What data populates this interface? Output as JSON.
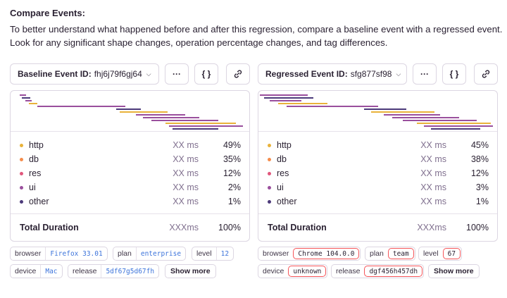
{
  "heading": "Compare Events:",
  "description": "To better understand what happened before and after this regression, compare a baseline event with a regressed event. Look for any significant shape changes, operation percentage changes, and tag differences.",
  "colors": {
    "http": "#e9b23a",
    "db": "#f58c4b",
    "res": "#e1567c",
    "ui": "#9a4f9d",
    "other": "#4c3a7a",
    "diff_border": "#f55459",
    "tag_value": "#3d74db"
  },
  "toolbar_icons": [
    "ellipsis-icon",
    "json-braces-icon",
    "link-icon"
  ],
  "toolbar_labels": {
    "more": "···",
    "json": "{ }"
  },
  "baseline": {
    "selector_label": "Baseline Event ID:",
    "event_id": "fhj6j79f6gj64",
    "operations": [
      {
        "name": "http",
        "ms": "XX ms",
        "pct": "49%",
        "color": "#e9b23a"
      },
      {
        "name": "db",
        "ms": "XX ms",
        "pct": "35%",
        "color": "#f58c4b"
      },
      {
        "name": "res",
        "ms": "XX ms",
        "pct": "12%",
        "color": "#e1567c"
      },
      {
        "name": "ui",
        "ms": "XX ms",
        "pct": "2%",
        "color": "#9a4f9d"
      },
      {
        "name": "other",
        "ms": "XX ms",
        "pct": "1%",
        "color": "#4c3a7a"
      }
    ],
    "total": {
      "label": "Total Duration",
      "ms": "XXXms",
      "pct": "100%"
    },
    "tags": [
      {
        "key": "browser",
        "value": "Firefox 33.01",
        "diff": false
      },
      {
        "key": "plan",
        "value": "enterprise",
        "diff": false
      },
      {
        "key": "level",
        "value": "12",
        "diff": false
      },
      {
        "key": "device",
        "value": "Mac",
        "diff": false
      },
      {
        "key": "release",
        "value": "5df67g5d67fh",
        "diff": false
      }
    ],
    "show_more": "Show more"
  },
  "regressed": {
    "selector_label": "Regressed Event ID:",
    "event_id": "sfg877sf98",
    "operations": [
      {
        "name": "http",
        "ms": "XX ms",
        "pct": "45%",
        "color": "#e9b23a"
      },
      {
        "name": "db",
        "ms": "XX ms",
        "pct": "38%",
        "color": "#f58c4b"
      },
      {
        "name": "res",
        "ms": "XX ms",
        "pct": "12%",
        "color": "#e1567c"
      },
      {
        "name": "ui",
        "ms": "XX ms",
        "pct": "3%",
        "color": "#9a4f9d"
      },
      {
        "name": "other",
        "ms": "XX ms",
        "pct": "1%",
        "color": "#4c3a7a"
      }
    ],
    "total": {
      "label": "Total Duration",
      "ms": "XXXms",
      "pct": "100%"
    },
    "tags": [
      {
        "key": "browser",
        "value": "Chrome 104.0.0",
        "diff": true
      },
      {
        "key": "plan",
        "value": "team",
        "diff": true
      },
      {
        "key": "level",
        "value": "67",
        "diff": true
      },
      {
        "key": "device",
        "value": "unknown",
        "diff": true
      },
      {
        "key": "release",
        "value": "dgf456h457dh",
        "diff": true
      }
    ],
    "show_more": "Show more"
  }
}
